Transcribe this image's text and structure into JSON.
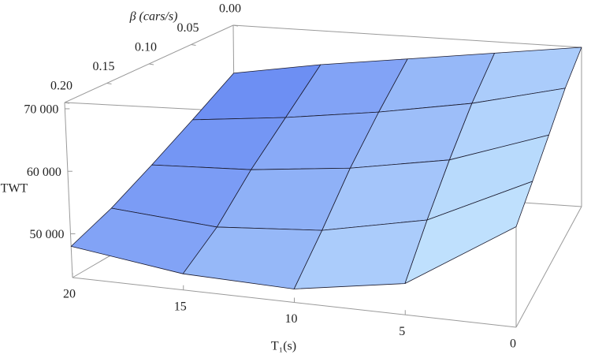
{
  "chart_data": {
    "type": "surface",
    "x_label": "T₁(s)",
    "y_label": "β (cars/s)",
    "z_label": "TWT",
    "x": [
      0,
      5,
      10,
      15,
      20
    ],
    "y": [
      0,
      0.05,
      0.1,
      0.15,
      0.2
    ],
    "z": [
      [
        71000,
        69000,
        67000,
        65000,
        62500
      ],
      [
        67500,
        64000,
        61500,
        59500,
        58000
      ],
      [
        63500,
        58500,
        56000,
        54500,
        54000
      ],
      [
        60000,
        53000,
        50000,
        49000,
        50500
      ],
      [
        57000,
        47500,
        45000,
        45500,
        48000
      ]
    ],
    "xlim": [
      0,
      20
    ],
    "ylim": [
      0,
      0.2
    ],
    "zlim": [
      43000,
      71000
    ],
    "xticks": [
      0,
      5,
      10,
      15,
      20
    ],
    "yticks": [
      {
        "value": 0,
        "label": "0.00"
      },
      {
        "value": 0.05,
        "label": "0.05"
      },
      {
        "value": 0.1,
        "label": "0.10"
      },
      {
        "value": 0.15,
        "label": "0.15"
      },
      {
        "value": 0.2,
        "label": "0.20"
      }
    ],
    "zticks": [
      {
        "value": 50000,
        "label": "50 000"
      },
      {
        "value": 60000,
        "label": "60 000"
      },
      {
        "value": 70000,
        "label": "70 000"
      }
    ],
    "colormap": [
      "#cdeeff",
      "#4466ee"
    ],
    "mesh_color": "#1a1a2e"
  }
}
